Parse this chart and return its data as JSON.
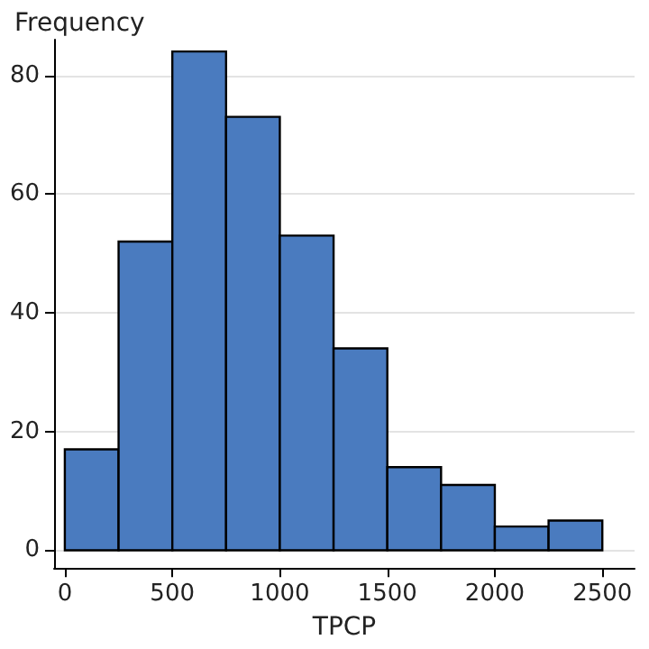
{
  "chart_data": {
    "type": "histogram",
    "xlabel": "TPCP",
    "ylabel": "Frequency",
    "bins": [
      0,
      250,
      500,
      750,
      1000,
      1250,
      1500,
      1750,
      2000,
      2250,
      2500
    ],
    "values": [
      17,
      52,
      84,
      73,
      53,
      34,
      14,
      11,
      4,
      5
    ],
    "color": "#4a7bbf",
    "xlim": [
      -50,
      2650
    ],
    "xticks": [
      0,
      500,
      1000,
      1500,
      2000,
      2500
    ],
    "ylim": [
      -3,
      86
    ],
    "yticks": [
      0,
      20,
      40,
      60,
      80
    ],
    "grid": "y"
  }
}
